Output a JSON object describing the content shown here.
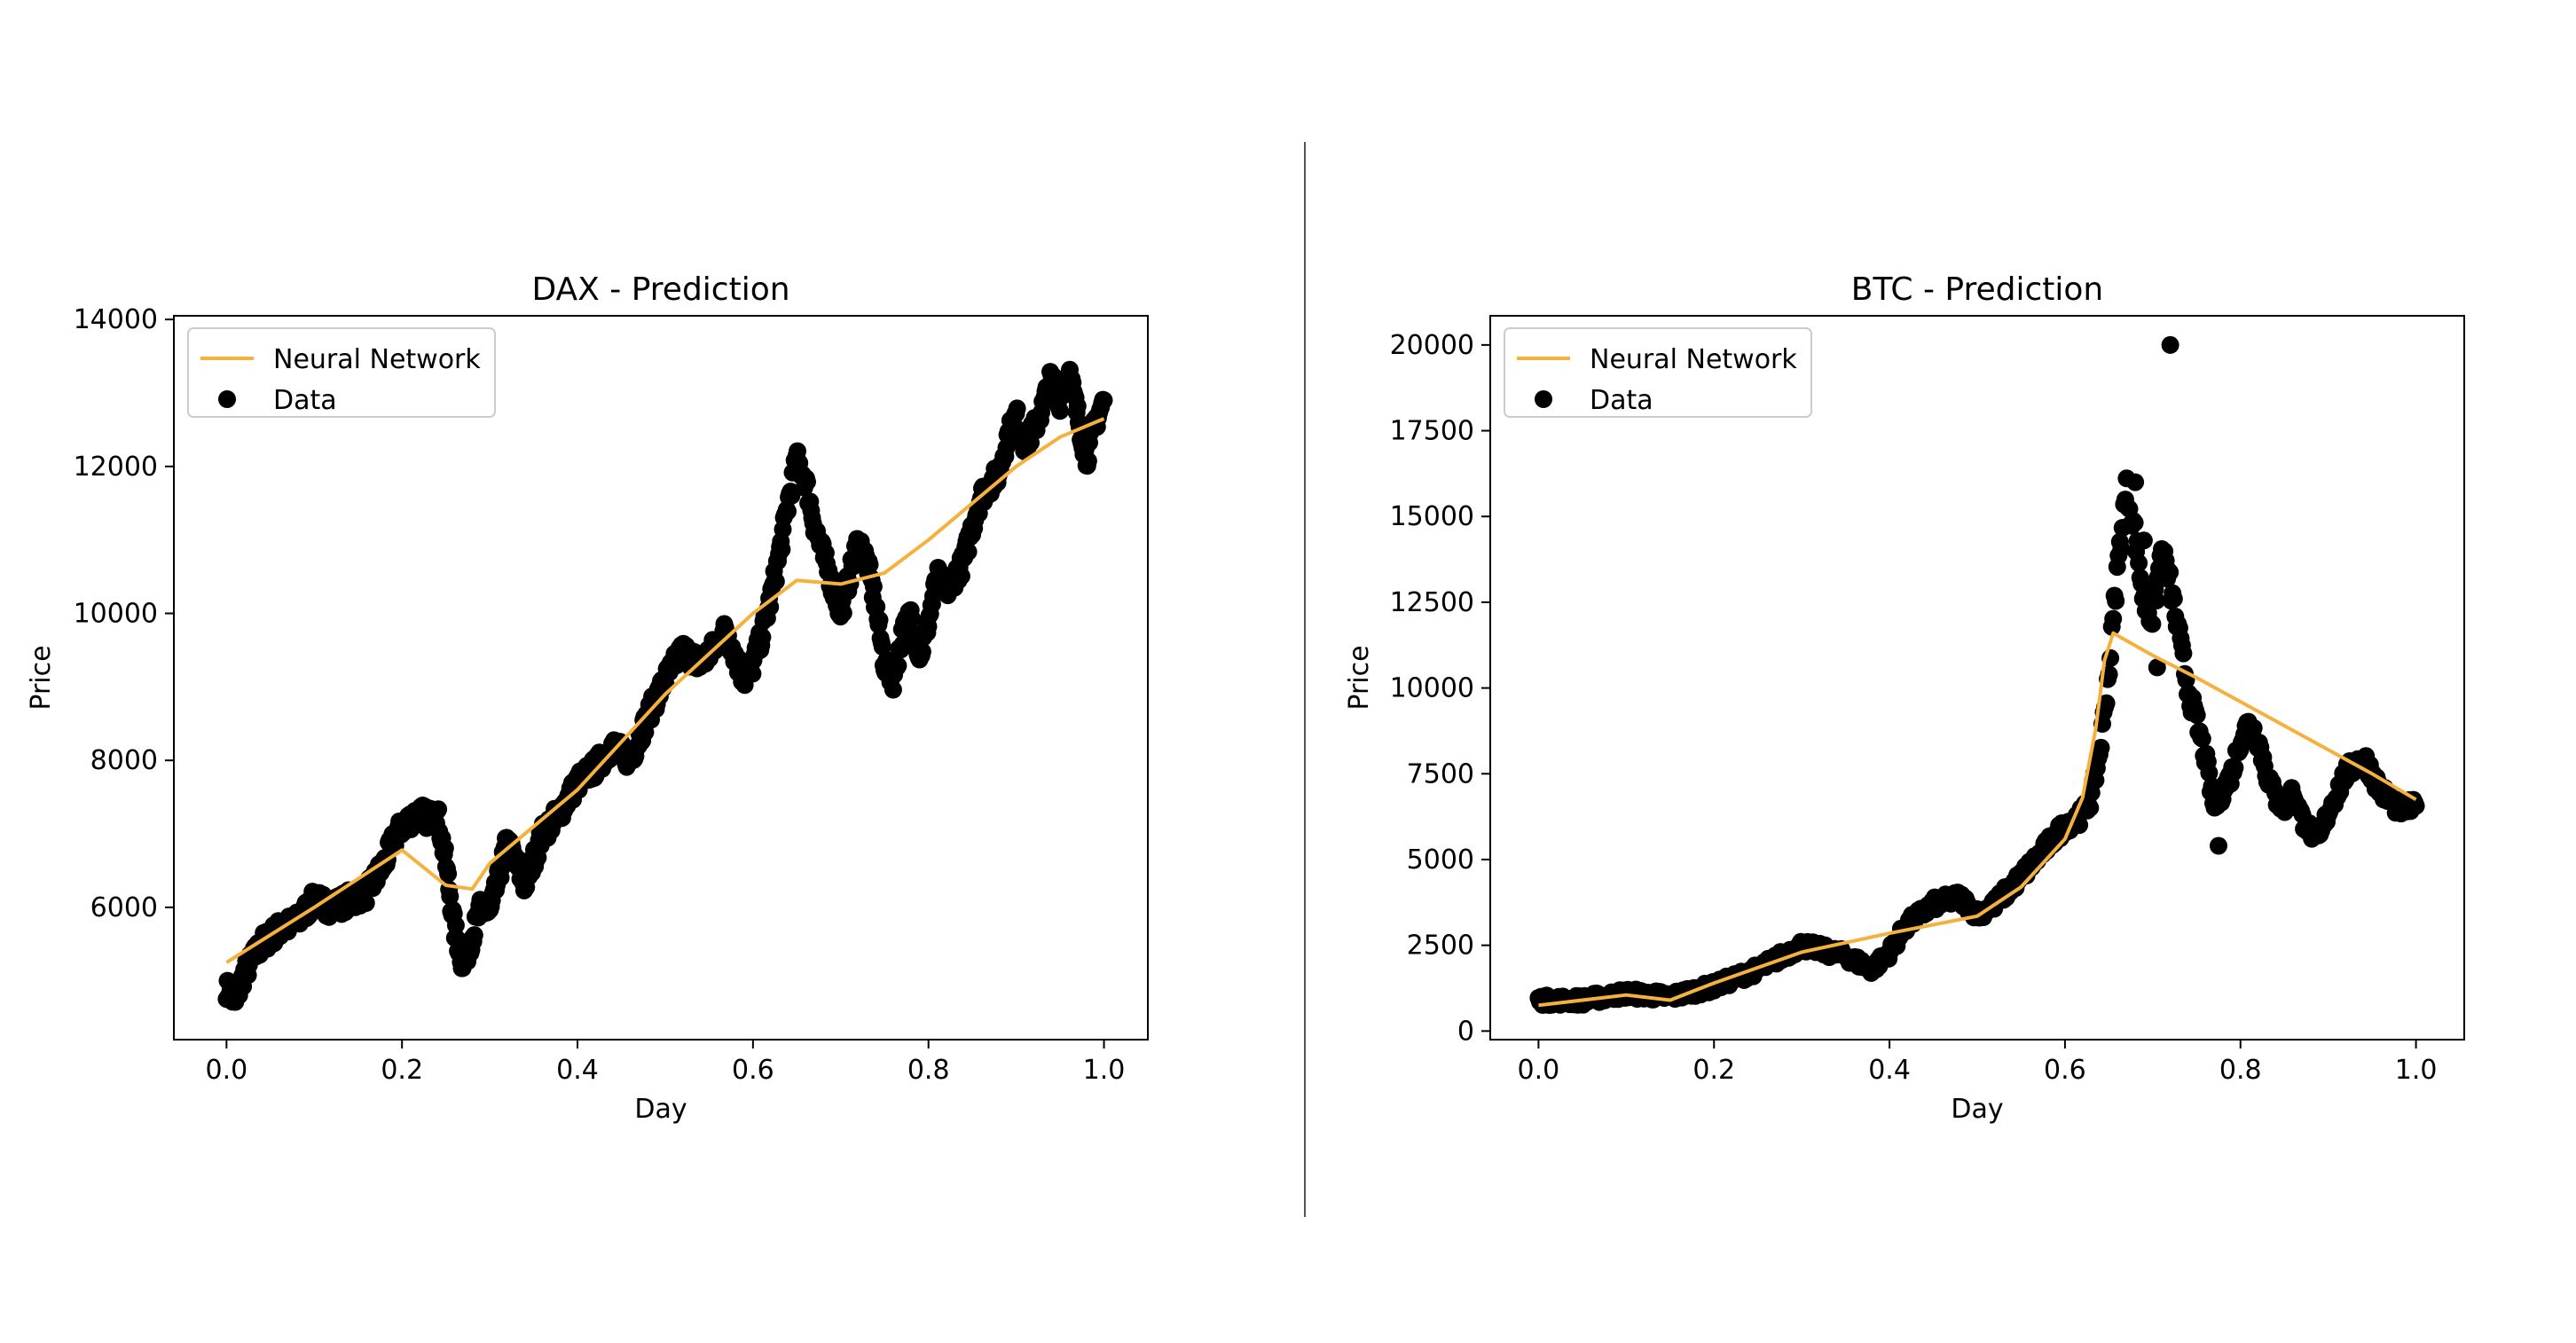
{
  "chart_data": [
    {
      "type": "scatter",
      "title": "DAX - Prediction",
      "xlabel": "Day",
      "ylabel": "Price",
      "xlim": [
        -0.06,
        1.05
      ],
      "ylim": [
        4200,
        14050
      ],
      "xticks": [
        0.0,
        0.2,
        0.4,
        0.6,
        0.8,
        1.0
      ],
      "xtick_labels": [
        "0.0",
        "0.2",
        "0.4",
        "0.6",
        "0.8",
        "1.0"
      ],
      "yticks": [
        6000,
        8000,
        10000,
        12000,
        14000
      ],
      "ytick_labels": [
        "6000",
        "8000",
        "10000",
        "12000",
        "14000"
      ],
      "legend": {
        "placement": "upper-left",
        "entries": [
          "Neural Network",
          "Data"
        ]
      },
      "grid": false,
      "series": [
        {
          "name": "Data",
          "kind": "scatter",
          "color": "#000000",
          "anchors": [
            [
              0.0,
              4900
            ],
            [
              0.01,
              4700
            ],
            [
              0.02,
              5100
            ],
            [
              0.04,
              5500
            ],
            [
              0.06,
              5700
            ],
            [
              0.08,
              5800
            ],
            [
              0.1,
              6100
            ],
            [
              0.12,
              6000
            ],
            [
              0.14,
              6100
            ],
            [
              0.16,
              6200
            ],
            [
              0.18,
              6600
            ],
            [
              0.19,
              6900
            ],
            [
              0.2,
              7100
            ],
            [
              0.22,
              7300
            ],
            [
              0.23,
              7200
            ],
            [
              0.24,
              7300
            ],
            [
              0.25,
              6600
            ],
            [
              0.26,
              5700
            ],
            [
              0.27,
              5200
            ],
            [
              0.28,
              5600
            ],
            [
              0.29,
              6000
            ],
            [
              0.3,
              5900
            ],
            [
              0.31,
              6400
            ],
            [
              0.32,
              6900
            ],
            [
              0.33,
              6600
            ],
            [
              0.34,
              6300
            ],
            [
              0.36,
              7000
            ],
            [
              0.38,
              7300
            ],
            [
              0.4,
              7700
            ],
            [
              0.42,
              7900
            ],
            [
              0.44,
              8200
            ],
            [
              0.46,
              8000
            ],
            [
              0.48,
              8600
            ],
            [
              0.5,
              9100
            ],
            [
              0.52,
              9500
            ],
            [
              0.54,
              9300
            ],
            [
              0.56,
              9600
            ],
            [
              0.57,
              9800
            ],
            [
              0.58,
              9400
            ],
            [
              0.59,
              9100
            ],
            [
              0.6,
              9300
            ],
            [
              0.61,
              9700
            ],
            [
              0.62,
              10200
            ],
            [
              0.63,
              10800
            ],
            [
              0.64,
              11500
            ],
            [
              0.65,
              12100
            ],
            [
              0.66,
              11800
            ],
            [
              0.67,
              11200
            ],
            [
              0.68,
              10800
            ],
            [
              0.69,
              10400
            ],
            [
              0.7,
              10000
            ],
            [
              0.71,
              10500
            ],
            [
              0.72,
              11000
            ],
            [
              0.73,
              10700
            ],
            [
              0.74,
              10100
            ],
            [
              0.75,
              9300
            ],
            [
              0.76,
              9100
            ],
            [
              0.77,
              9700
            ],
            [
              0.78,
              10000
            ],
            [
              0.79,
              9400
            ],
            [
              0.8,
              9900
            ],
            [
              0.81,
              10500
            ],
            [
              0.82,
              10300
            ],
            [
              0.84,
              10700
            ],
            [
              0.85,
              11200
            ],
            [
              0.86,
              11600
            ],
            [
              0.88,
              11900
            ],
            [
              0.89,
              12400
            ],
            [
              0.9,
              12700
            ],
            [
              0.91,
              12300
            ],
            [
              0.92,
              12500
            ],
            [
              0.93,
              12800
            ],
            [
              0.94,
              13200
            ],
            [
              0.95,
              12900
            ],
            [
              0.96,
              13300
            ],
            [
              0.97,
              12700
            ],
            [
              0.98,
              12100
            ],
            [
              0.99,
              12600
            ],
            [
              1.0,
              12900
            ]
          ]
        },
        {
          "name": "Neural Network",
          "kind": "line",
          "color": "#f5b13d",
          "x": [
            0.0,
            0.1,
            0.2,
            0.25,
            0.28,
            0.3,
            0.4,
            0.5,
            0.6,
            0.65,
            0.7,
            0.75,
            0.8,
            0.85,
            0.9,
            0.95,
            1.0
          ],
          "y": [
            5250,
            6000,
            6780,
            6300,
            6250,
            6600,
            7600,
            8900,
            10000,
            10450,
            10400,
            10550,
            11000,
            11500,
            12000,
            12400,
            12650
          ]
        }
      ]
    },
    {
      "type": "scatter",
      "title": "BTC - Prediction",
      "xlabel": "Day",
      "ylabel": "Price",
      "xlim": [
        -0.055,
        1.055
      ],
      "ylim": [
        -250,
        20850
      ],
      "xticks": [
        0.0,
        0.2,
        0.4,
        0.6,
        0.8,
        1.0
      ],
      "xtick_labels": [
        "0.0",
        "0.2",
        "0.4",
        "0.6",
        "0.8",
        "1.0"
      ],
      "yticks": [
        0,
        2500,
        5000,
        7500,
        10000,
        12500,
        15000,
        17500,
        20000
      ],
      "ytick_labels": [
        "0",
        "2500",
        "5000",
        "7500",
        "10000",
        "12500",
        "15000",
        "17500",
        "20000"
      ],
      "legend": {
        "placement": "upper-left",
        "entries": [
          "Neural Network",
          "Data"
        ]
      },
      "grid": false,
      "series": [
        {
          "name": "Data",
          "kind": "scatter",
          "color": "#000000",
          "anchors": [
            [
              0.0,
              900
            ],
            [
              0.05,
              900
            ],
            [
              0.1,
              1100
            ],
            [
              0.15,
              1000
            ],
            [
              0.2,
              1300
            ],
            [
              0.25,
              1800
            ],
            [
              0.3,
              2500
            ],
            [
              0.35,
              2200
            ],
            [
              0.38,
              1800
            ],
            [
              0.4,
              2300
            ],
            [
              0.42,
              3100
            ],
            [
              0.45,
              3700
            ],
            [
              0.48,
              3900
            ],
            [
              0.5,
              3400
            ],
            [
              0.52,
              3700
            ],
            [
              0.55,
              4500
            ],
            [
              0.58,
              5400
            ],
            [
              0.6,
              6000
            ],
            [
              0.62,
              6300
            ],
            [
              0.63,
              6800
            ],
            [
              0.64,
              8200
            ],
            [
              0.65,
              10500
            ],
            [
              0.66,
              13500
            ],
            [
              0.67,
              15800
            ],
            [
              0.68,
              14500
            ],
            [
              0.69,
              12500
            ],
            [
              0.7,
              12000
            ],
            [
              0.71,
              14000
            ],
            [
              0.72,
              13000
            ],
            [
              0.73,
              11500
            ],
            [
              0.74,
              10000
            ],
            [
              0.75,
              9000
            ],
            [
              0.76,
              8000
            ],
            [
              0.77,
              6500
            ],
            [
              0.78,
              7000
            ],
            [
              0.79,
              7500
            ],
            [
              0.8,
              8500
            ],
            [
              0.81,
              9000
            ],
            [
              0.82,
              8500
            ],
            [
              0.83,
              7500
            ],
            [
              0.84,
              6800
            ],
            [
              0.85,
              6500
            ],
            [
              0.86,
              7000
            ],
            [
              0.87,
              6200
            ],
            [
              0.88,
              5800
            ],
            [
              0.89,
              5600
            ],
            [
              0.9,
              6400
            ],
            [
              0.92,
              7500
            ],
            [
              0.94,
              8000
            ],
            [
              0.96,
              7000
            ],
            [
              0.98,
              6500
            ],
            [
              1.0,
              6500
            ]
          ],
          "extra_points": [
            [
              0.72,
              20000
            ],
            [
              0.775,
              5400
            ],
            [
              0.68,
              16000
            ],
            [
              0.705,
              10600
            ],
            [
              0.69,
              14300
            ]
          ]
        },
        {
          "name": "Neural Network",
          "kind": "line",
          "color": "#f5b13d",
          "x": [
            0.0,
            0.1,
            0.15,
            0.2,
            0.3,
            0.4,
            0.5,
            0.55,
            0.6,
            0.62,
            0.635,
            0.645,
            0.655,
            0.7,
            0.75,
            0.8,
            0.85,
            0.9,
            0.95,
            1.0
          ],
          "y": [
            750,
            1050,
            900,
            1400,
            2300,
            2850,
            3350,
            4200,
            5600,
            6800,
            8800,
            10800,
            11600,
            10950,
            10300,
            9600,
            8900,
            8200,
            7500,
            6750
          ]
        }
      ]
    }
  ]
}
